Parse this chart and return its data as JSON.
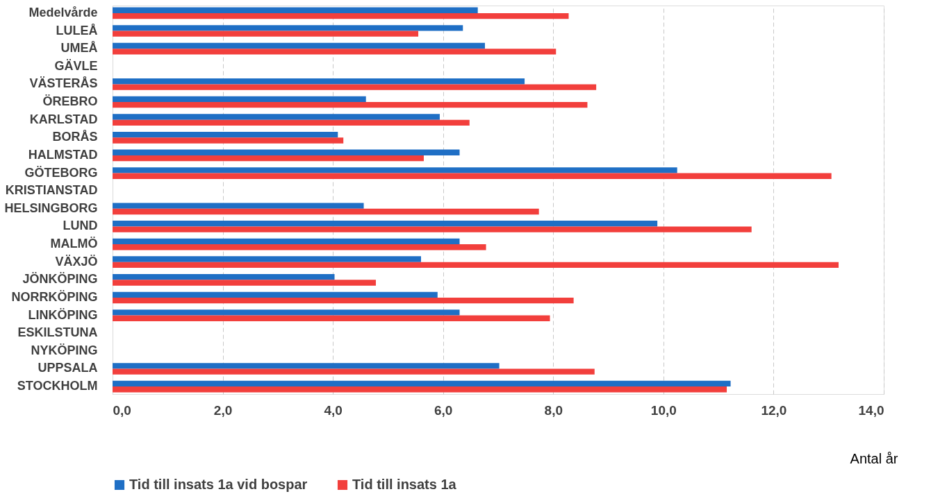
{
  "chart_data": {
    "type": "bar",
    "orientation": "horizontal",
    "xlabel": "Antal år",
    "categories": [
      "Medelvårde",
      "LULEÅ",
      "UMEÅ",
      "GÄVLE",
      "VÄSTERÅS",
      "ÖREBRO",
      "KARLSTAD",
      "BORÅS",
      "HALMSTAD",
      "GÖTEBORG",
      "KRISTIANSTAD",
      "HELSINGBORG",
      "LUND",
      "MALMÖ",
      "VÄXJÖ",
      "JÖNKÖPING",
      "NORRKÖPING",
      "LINKÖPING",
      "ESKILSTUNA",
      "NYKÖPING",
      "UPPSALA",
      "STOCKHOLM"
    ],
    "series": [
      {
        "name": "Tid till insats 1a vid bospar",
        "color": "#1f6fc5",
        "values": [
          6.63,
          6.36,
          6.76,
          null,
          7.48,
          4.6,
          5.94,
          4.09,
          6.3,
          10.25,
          null,
          4.56,
          9.89,
          6.3,
          5.6,
          4.03,
          5.9,
          6.3,
          null,
          null,
          7.02,
          11.22
        ]
      },
      {
        "name": "Tid till insats 1a",
        "color": "#f23f3c",
        "values": [
          8.28,
          5.55,
          8.05,
          null,
          8.78,
          8.62,
          6.48,
          4.19,
          5.65,
          13.05,
          null,
          7.74,
          11.6,
          6.78,
          13.18,
          4.78,
          8.37,
          7.94,
          null,
          null,
          8.75,
          11.15
        ]
      }
    ],
    "xlim": [
      0,
      14
    ],
    "xticks": [
      {
        "value": 0,
        "label": "0,0"
      },
      {
        "value": 2,
        "label": "2,0"
      },
      {
        "value": 4,
        "label": "4,0"
      },
      {
        "value": 6,
        "label": "6,0"
      },
      {
        "value": 8,
        "label": "8,0"
      },
      {
        "value": 10,
        "label": "10,0"
      },
      {
        "value": 12,
        "label": "12,0"
      },
      {
        "value": 14,
        "label": "14,0"
      }
    ],
    "grid": "x",
    "legend": "bottom"
  }
}
